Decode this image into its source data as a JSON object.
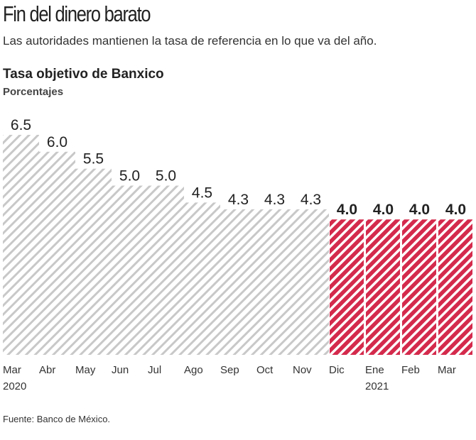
{
  "chart_data": {
    "type": "bar",
    "title": "Fin del dinero barato",
    "subtitle": "Las autoridades mantienen la tasa de referencia en lo que va del año.",
    "chart_title": "Tasa objetivo de Banxico",
    "ylabel": "Porcentajes",
    "categories": [
      "Mar",
      "Abr",
      "May",
      "Jun",
      "Jul",
      "Ago",
      "Sep",
      "Oct",
      "Nov",
      "Dic",
      "Ene",
      "Feb",
      "Mar"
    ],
    "year_labels": {
      "0": "2020",
      "10": "2021"
    },
    "values": [
      6.5,
      6.0,
      5.5,
      5.0,
      5.0,
      4.5,
      4.3,
      4.3,
      4.3,
      4.0,
      4.0,
      4.0,
      4.0
    ],
    "value_labels": [
      "6.5",
      "6.0",
      "5.5",
      "5.0",
      "5.0",
      "4.5",
      "4.3",
      "4.3",
      "4.3",
      "4.0",
      "4.0",
      "4.0",
      "4.0"
    ],
    "highlight_from_index": 9,
    "colors": {
      "normal": "#c8c8c8",
      "highlight": "#d42a4c"
    },
    "ylim": [
      0,
      6.5
    ],
    "grid": false,
    "source": "Fuente: Banco de México."
  }
}
